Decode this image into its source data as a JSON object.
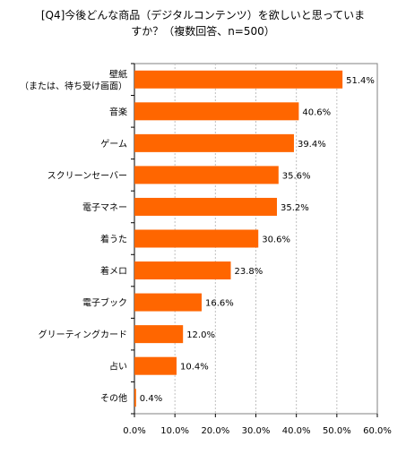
{
  "chart_data": {
    "type": "bar",
    "orientation": "horizontal",
    "title_lines": [
      "[Q4]今後どんな商品（デジタルコンテンツ）を欲しいと思っていま",
      "すか？（複数回答、n=500）"
    ],
    "categories": [
      [
        "壁紙",
        "（または、待ち受け画面）"
      ],
      [
        "音楽"
      ],
      [
        "ゲーム"
      ],
      [
        "スクリーンセーバー"
      ],
      [
        "電子マネー"
      ],
      [
        "着うた"
      ],
      [
        "着メロ"
      ],
      [
        "電子ブック"
      ],
      [
        "グリーティングカード"
      ],
      [
        "占い"
      ],
      [
        "その他"
      ]
    ],
    "values": [
      51.4,
      40.6,
      39.4,
      35.6,
      35.2,
      30.6,
      23.8,
      16.6,
      12.0,
      10.4,
      0.4
    ],
    "value_labels": [
      "51.4%",
      "40.6%",
      "39.4%",
      "35.6%",
      "35.2%",
      "30.6%",
      "23.8%",
      "16.6%",
      "12.0%",
      "10.4%",
      "0.4%"
    ],
    "xlim": [
      0,
      60
    ],
    "x_ticks": [
      0,
      10,
      20,
      30,
      40,
      50,
      60
    ],
    "x_tick_labels": [
      "0.0%",
      "10.0%",
      "20.0%",
      "30.0%",
      "40.0%",
      "50.0%",
      "60.0%"
    ],
    "grid": true,
    "bar_color": "#FF6600",
    "grid_color": "#C0C0C0"
  }
}
